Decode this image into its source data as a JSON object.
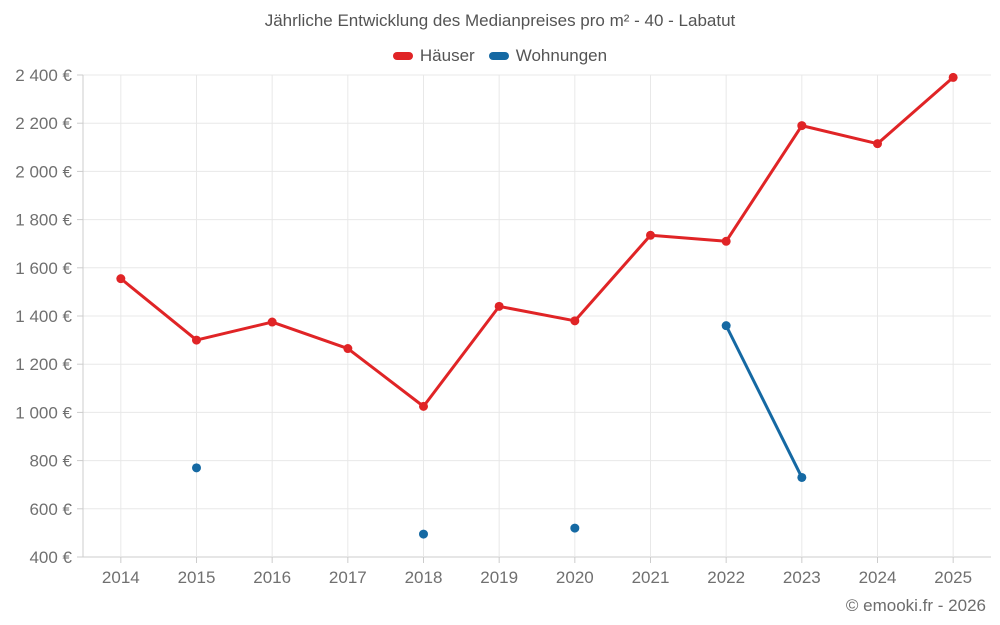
{
  "chart_data": {
    "type": "line",
    "title": "Jährliche Entwicklung des Medianpreises pro m² - 40 - Labatut",
    "xlabel": "",
    "ylabel": "",
    "categories": [
      "2014",
      "2015",
      "2016",
      "2017",
      "2018",
      "2019",
      "2020",
      "2021",
      "2022",
      "2023",
      "2024",
      "2025"
    ],
    "series": [
      {
        "name": "Häuser",
        "color": "#e02426",
        "values": [
          1555,
          1300,
          1375,
          1265,
          1025,
          1440,
          1380,
          1735,
          1710,
          2190,
          2115,
          2390
        ]
      },
      {
        "name": "Wohnungen",
        "color": "#1569a3",
        "values": [
          null,
          770,
          null,
          null,
          495,
          null,
          520,
          null,
          1360,
          730,
          null,
          null
        ]
      }
    ],
    "ylim": [
      400,
      2400
    ],
    "y_tick_step": 200,
    "y_tick_labels": [
      "400 €",
      "600 €",
      "800 €",
      "1 000 €",
      "1 200 €",
      "1 400 €",
      "1 600 €",
      "1 800 €",
      "2 000 €",
      "2 200 €",
      "2 400 €"
    ],
    "grid": true,
    "legend_position": "top"
  },
  "footer": {
    "copyright": "© emooki.fr - 2026"
  }
}
